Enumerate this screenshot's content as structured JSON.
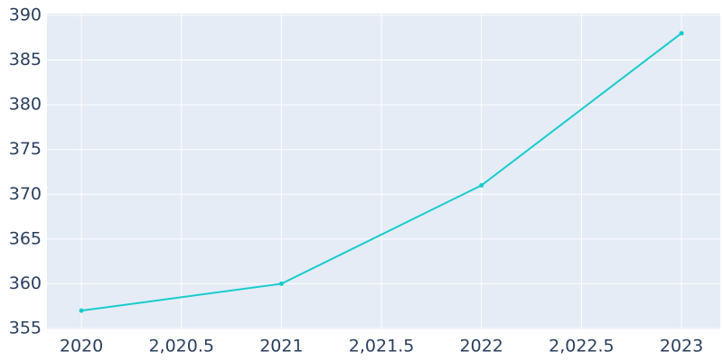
{
  "chart_data": {
    "type": "line",
    "x": [
      2020,
      2021,
      2022,
      2023
    ],
    "series": [
      {
        "color": "#17cccc",
        "values": [
          357,
          360,
          371,
          388
        ]
      }
    ],
    "xlim": [
      2019.828,
      2023.194
    ],
    "ylim": [
      354.9,
      390.2
    ],
    "xticks": [
      2020,
      {
        "value": 2020.5,
        "label": "2,020.5"
      },
      2021,
      {
        "value": 2021.5,
        "label": "2,021.5"
      },
      2022,
      {
        "value": 2022.5,
        "label": "2,022.5"
      },
      2023
    ],
    "yticks": [
      355,
      360,
      365,
      370,
      375,
      380,
      385,
      390
    ],
    "grid": true
  }
}
